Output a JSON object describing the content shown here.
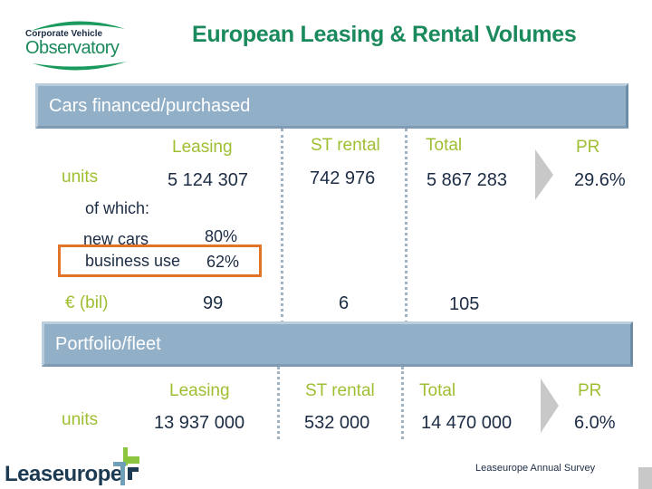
{
  "logo_top": {
    "line1": "Corporate Vehicle",
    "line2": "Observatory"
  },
  "title": "European Leasing & Rental Volumes",
  "section1": {
    "header": "Cars financed/purchased",
    "columns": [
      "Leasing",
      "ST rental",
      "Total",
      "PR"
    ],
    "units": {
      "label": "units",
      "leasing": "5 124 307",
      "st_rental": "742 976",
      "total": "5 867 283",
      "pr": "29.6%"
    },
    "of_which": "of which:",
    "new_cars": {
      "label": "new cars",
      "value": "80%"
    },
    "business_use": {
      "label": "business use",
      "value": "62%"
    },
    "eur": {
      "label": "€ (bil)",
      "leasing": "99",
      "st_rental": "6",
      "total": "105"
    }
  },
  "section2": {
    "header": "Portfolio/fleet",
    "columns": [
      "Leasing",
      "ST rental",
      "Total",
      "PR"
    ],
    "units": {
      "label": "units",
      "leasing": "13 937 000",
      "st_rental": "532 000",
      "total": "14 470 000",
      "pr": "6.0%"
    }
  },
  "footer": {
    "logo": "Leaseurope",
    "credit": "Leaseurope Annual Survey"
  },
  "colors": {
    "title": "#1a8a5c",
    "label_green": "#9fbf33",
    "value": "#1c2c44",
    "bar": "#92afc8",
    "highlight": "#e07428"
  }
}
